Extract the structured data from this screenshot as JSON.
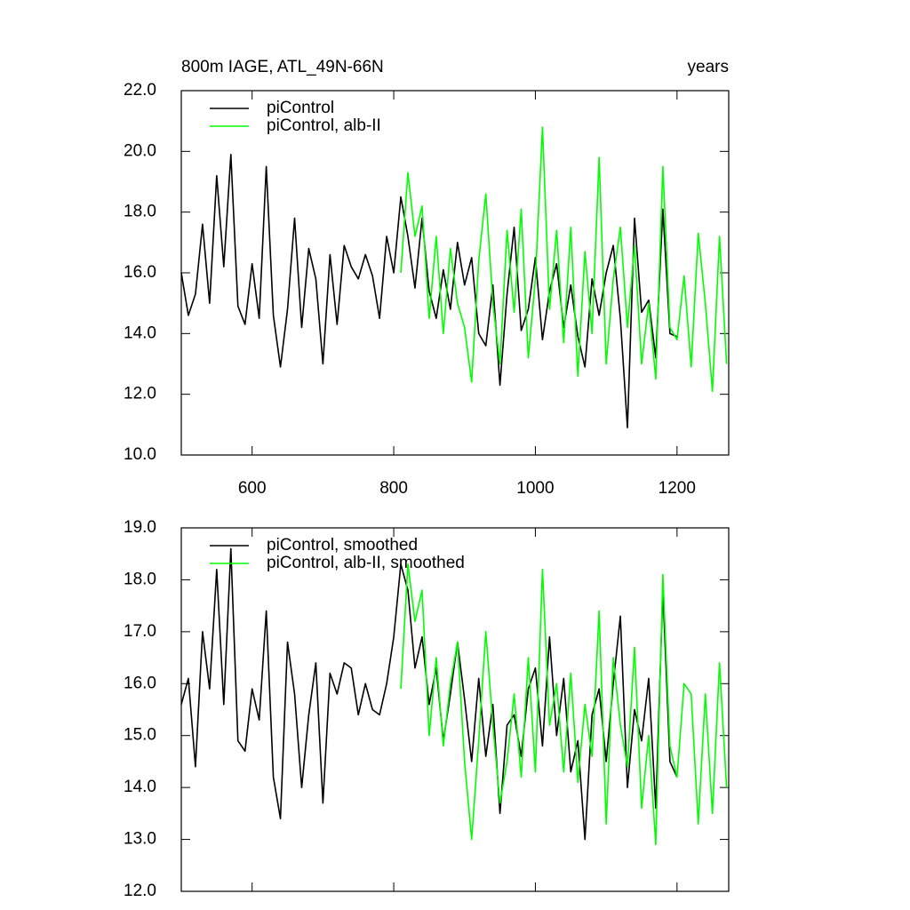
{
  "chart_data": [
    {
      "type": "line",
      "title": "800m IAGE, ATL_49N-66N",
      "right_title": "years",
      "xlim": [
        500,
        1273
      ],
      "xticks": [
        600,
        800,
        1000,
        1200
      ],
      "show_xtick_labels": true,
      "ylim": [
        10,
        22
      ],
      "yticks": [
        {
          "value": 10,
          "label": "10.0"
        },
        {
          "value": 12,
          "label": "12.0"
        },
        {
          "value": 14,
          "label": "14.0"
        },
        {
          "value": 16,
          "label": "16.0"
        },
        {
          "value": 18,
          "label": "18.0"
        },
        {
          "value": 20,
          "label": "20.0"
        },
        {
          "value": 22,
          "label": "22.0"
        }
      ],
      "legend": "top-left",
      "series": [
        {
          "name": "piControl",
          "color": "#000000",
          "x": [
            500,
            510,
            520,
            530,
            540,
            550,
            560,
            570,
            580,
            590,
            600,
            610,
            620,
            630,
            640,
            650,
            660,
            670,
            680,
            690,
            700,
            710,
            720,
            730,
            740,
            750,
            760,
            770,
            780,
            790,
            800,
            810,
            820,
            830,
            840,
            850,
            860,
            870,
            880,
            890,
            900,
            910,
            920,
            930,
            940,
            950,
            960,
            970,
            980,
            990,
            1000,
            1010,
            1020,
            1030,
            1040,
            1050,
            1060,
            1070,
            1080,
            1090,
            1100,
            1110,
            1120,
            1130,
            1140,
            1150,
            1160,
            1170,
            1180,
            1190,
            1200
          ],
          "values": [
            16.0,
            14.6,
            15.3,
            17.6,
            15.0,
            19.2,
            16.2,
            19.9,
            14.9,
            14.3,
            16.3,
            14.5,
            19.5,
            14.6,
            12.9,
            14.8,
            17.8,
            14.2,
            16.8,
            15.8,
            13.0,
            16.6,
            14.3,
            16.9,
            16.2,
            15.8,
            16.6,
            15.9,
            14.5,
            17.2,
            16.0,
            18.5,
            17.2,
            15.5,
            17.8,
            15.4,
            14.5,
            16.1,
            14.8,
            17.0,
            15.6,
            16.5,
            14.0,
            13.6,
            15.6,
            12.3,
            15.3,
            17.5,
            14.1,
            14.8,
            16.5,
            13.8,
            15.4,
            16.3,
            14.2,
            15.6,
            13.9,
            12.9,
            15.8,
            14.6,
            16.0,
            16.9,
            14.5,
            10.9,
            17.8,
            14.7,
            15.1,
            13.2,
            18.1,
            14.0,
            13.9
          ]
        },
        {
          "name": "piControl, alb-II",
          "color": "#00ff00",
          "x": [
            810,
            820,
            830,
            840,
            850,
            860,
            870,
            880,
            890,
            900,
            910,
            920,
            930,
            940,
            950,
            960,
            970,
            980,
            990,
            1000,
            1010,
            1020,
            1030,
            1040,
            1050,
            1060,
            1070,
            1080,
            1090,
            1100,
            1110,
            1120,
            1130,
            1140,
            1150,
            1160,
            1170,
            1180,
            1190,
            1200,
            1210,
            1220,
            1230,
            1240,
            1250,
            1260,
            1270
          ],
          "values": [
            16.0,
            19.3,
            17.2,
            18.2,
            14.5,
            17.2,
            14.0,
            16.8,
            15.0,
            14.2,
            12.4,
            16.4,
            18.6,
            15.0,
            13.0,
            17.4,
            14.7,
            18.1,
            13.2,
            15.8,
            20.8,
            14.8,
            17.4,
            13.7,
            17.5,
            12.6,
            16.7,
            14.0,
            19.8,
            13.0,
            15.8,
            17.5,
            14.2,
            16.9,
            13.0,
            15.0,
            12.5,
            19.5,
            14.2,
            13.8,
            15.9,
            12.9,
            17.3,
            15.0,
            12.1,
            17.2,
            13.0
          ]
        }
      ]
    },
    {
      "type": "line",
      "xlim": [
        500,
        1273
      ],
      "xticks": [
        600,
        800,
        1000,
        1200
      ],
      "show_xtick_labels": false,
      "ylim": [
        12,
        19
      ],
      "yticks": [
        {
          "value": 12,
          "label": "12.0"
        },
        {
          "value": 13,
          "label": "13.0"
        },
        {
          "value": 14,
          "label": "14.0"
        },
        {
          "value": 15,
          "label": "15.0"
        },
        {
          "value": 16,
          "label": "16.0"
        },
        {
          "value": 17,
          "label": "17.0"
        },
        {
          "value": 18,
          "label": "18.0"
        },
        {
          "value": 19,
          "label": "19.0"
        }
      ],
      "legend": "top-left",
      "series": [
        {
          "name": "piControl, smoothed",
          "color": "#000000",
          "x": [
            500,
            510,
            520,
            530,
            540,
            550,
            560,
            570,
            580,
            590,
            600,
            610,
            620,
            630,
            640,
            650,
            660,
            670,
            680,
            690,
            700,
            710,
            720,
            730,
            740,
            750,
            760,
            770,
            780,
            790,
            800,
            810,
            820,
            830,
            840,
            850,
            860,
            870,
            880,
            890,
            900,
            910,
            920,
            930,
            940,
            950,
            960,
            970,
            980,
            990,
            1000,
            1010,
            1020,
            1030,
            1040,
            1050,
            1060,
            1070,
            1080,
            1090,
            1100,
            1110,
            1120,
            1130,
            1140,
            1150,
            1160,
            1170,
            1180,
            1190,
            1200
          ],
          "values": [
            15.6,
            16.1,
            14.4,
            17.0,
            15.9,
            18.2,
            15.6,
            18.6,
            14.9,
            14.7,
            15.9,
            15.3,
            17.4,
            14.2,
            13.4,
            16.8,
            15.8,
            14.0,
            15.4,
            16.4,
            13.7,
            16.2,
            15.8,
            16.4,
            16.3,
            15.4,
            16.0,
            15.5,
            15.4,
            16.0,
            16.9,
            18.3,
            17.8,
            16.3,
            16.9,
            15.6,
            16.3,
            14.9,
            15.8,
            16.8,
            15.7,
            14.5,
            16.1,
            14.6,
            15.6,
            13.5,
            15.2,
            15.4,
            14.6,
            15.9,
            16.3,
            14.8,
            16.9,
            15.0,
            16.1,
            14.3,
            14.9,
            13.0,
            15.4,
            15.9,
            14.5,
            16.0,
            17.3,
            14.0,
            15.5,
            14.9,
            16.1,
            13.6,
            17.8,
            14.5,
            14.2
          ]
        },
        {
          "name": "piControl, alb-II, smoothed",
          "color": "#00ff00",
          "x": [
            810,
            820,
            830,
            840,
            850,
            860,
            870,
            880,
            890,
            900,
            910,
            920,
            930,
            940,
            950,
            960,
            970,
            980,
            990,
            1000,
            1010,
            1020,
            1030,
            1040,
            1050,
            1060,
            1070,
            1080,
            1090,
            1100,
            1110,
            1120,
            1130,
            1140,
            1150,
            1160,
            1170,
            1180,
            1190,
            1200,
            1210,
            1220,
            1230,
            1240,
            1250,
            1260,
            1270
          ],
          "values": [
            15.9,
            18.3,
            17.2,
            17.8,
            15.0,
            16.5,
            14.8,
            16.0,
            16.8,
            14.5,
            13.0,
            14.9,
            17.0,
            15.2,
            13.7,
            14.5,
            15.8,
            14.2,
            16.5,
            14.3,
            18.2,
            15.2,
            16.0,
            14.3,
            16.2,
            14.1,
            15.6,
            14.6,
            17.4,
            13.3,
            16.5,
            15.2,
            14.4,
            16.7,
            13.6,
            15.0,
            12.9,
            18.1,
            14.8,
            14.2,
            16.0,
            15.8,
            13.3,
            15.8,
            13.5,
            16.4,
            14.0
          ]
        }
      ]
    }
  ]
}
